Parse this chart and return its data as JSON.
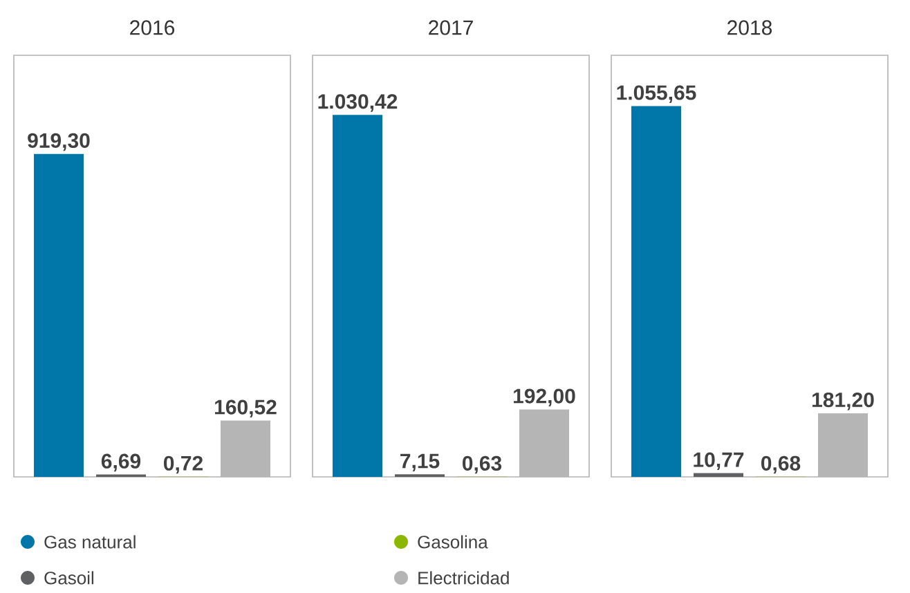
{
  "chart_data": [
    {
      "type": "bar",
      "title": "2016",
      "categories": [
        null
      ],
      "ylim": [
        0,
        1200
      ],
      "tick_labels": false,
      "legend": "bottom",
      "series": [
        {
          "name": "Gas natural",
          "color": "#0077a8",
          "values": [
            919.3
          ],
          "value_labels": [
            "919,30"
          ]
        },
        {
          "name": "Gasoil",
          "color": "#5f6062",
          "values": [
            6.69
          ],
          "value_labels": [
            "6,69"
          ]
        },
        {
          "name": "Gasolina",
          "color": "#8db600",
          "values": [
            0.72
          ],
          "value_labels": [
            "0,72"
          ]
        },
        {
          "name": "Electricidad",
          "color": "#b5b5b5",
          "values": [
            160.52
          ],
          "value_labels": [
            "160,52"
          ]
        }
      ]
    },
    {
      "type": "bar",
      "title": "2017",
      "categories": [
        null
      ],
      "ylim": [
        0,
        1200
      ],
      "tick_labels": false,
      "series": [
        {
          "color": "#0077a8",
          "values": [
            1030.42
          ],
          "value_labels": [
            "1.030,42"
          ]
        },
        {
          "color": "#5f6062",
          "values": [
            7.15
          ],
          "value_labels": [
            "7,15"
          ]
        },
        {
          "color": "#8db600",
          "values": [
            0.63
          ],
          "value_labels": [
            "0,63"
          ]
        },
        {
          "color": "#b5b5b5",
          "values": [
            192.0
          ],
          "value_labels": [
            "192,00"
          ]
        }
      ]
    },
    {
      "type": "bar",
      "title": "2018",
      "categories": [
        null
      ],
      "ylim": [
        0,
        1200
      ],
      "tick_labels": false,
      "series": [
        {
          "color": "#0077a8",
          "values": [
            1055.65
          ],
          "value_labels": [
            "1.055,65"
          ]
        },
        {
          "color": "#5f6062",
          "values": [
            10.77
          ],
          "value_labels": [
            "10,77"
          ]
        },
        {
          "color": "#8db600",
          "values": [
            0.68
          ],
          "value_labels": [
            "0,68"
          ]
        },
        {
          "color": "#b5b5b5",
          "values": [
            181.2
          ],
          "value_labels": [
            "181,20"
          ]
        }
      ]
    }
  ]
}
